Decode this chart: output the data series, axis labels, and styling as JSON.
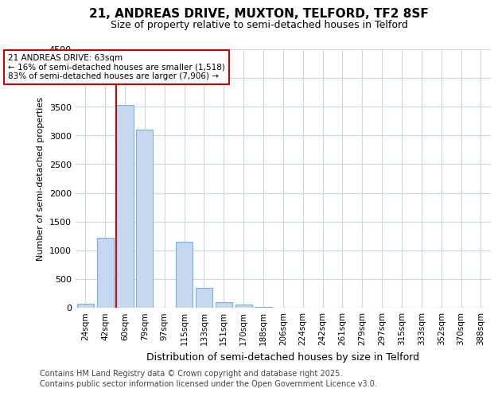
{
  "title": "21, ANDREAS DRIVE, MUXTON, TELFORD, TF2 8SF",
  "subtitle": "Size of property relative to semi-detached houses in Telford",
  "xlabel": "Distribution of semi-detached houses by size in Telford",
  "ylabel": "Number of semi-detached properties",
  "categories": [
    "24sqm",
    "42sqm",
    "60sqm",
    "79sqm",
    "97sqm",
    "115sqm",
    "133sqm",
    "151sqm",
    "170sqm",
    "188sqm",
    "206sqm",
    "224sqm",
    "242sqm",
    "261sqm",
    "279sqm",
    "297sqm",
    "315sqm",
    "333sqm",
    "352sqm",
    "370sqm",
    "388sqm"
  ],
  "values": [
    75,
    1225,
    3525,
    3100,
    0,
    1150,
    340,
    100,
    55,
    15,
    5,
    0,
    0,
    0,
    0,
    0,
    0,
    0,
    0,
    0,
    0
  ],
  "bar_color": "#c5d8f0",
  "bar_edge_color": "#7aafdf",
  "vline_color": "#cc0000",
  "annotation_title": "21 ANDREAS DRIVE: 63sqm",
  "annotation_line2": "← 16% of semi-detached houses are smaller (1,518)",
  "annotation_line3": "83% of semi-detached houses are larger (7,906) →",
  "ylim": [
    0,
    4500
  ],
  "yticks": [
    0,
    500,
    1000,
    1500,
    2000,
    2500,
    3000,
    3500,
    4000,
    4500
  ],
  "footer_line1": "Contains HM Land Registry data © Crown copyright and database right 2025.",
  "footer_line2": "Contains public sector information licensed under the Open Government Licence v3.0.",
  "bg_color": "#ffffff",
  "plot_bg_color": "#ffffff",
  "grid_color": "#c8d8e8"
}
